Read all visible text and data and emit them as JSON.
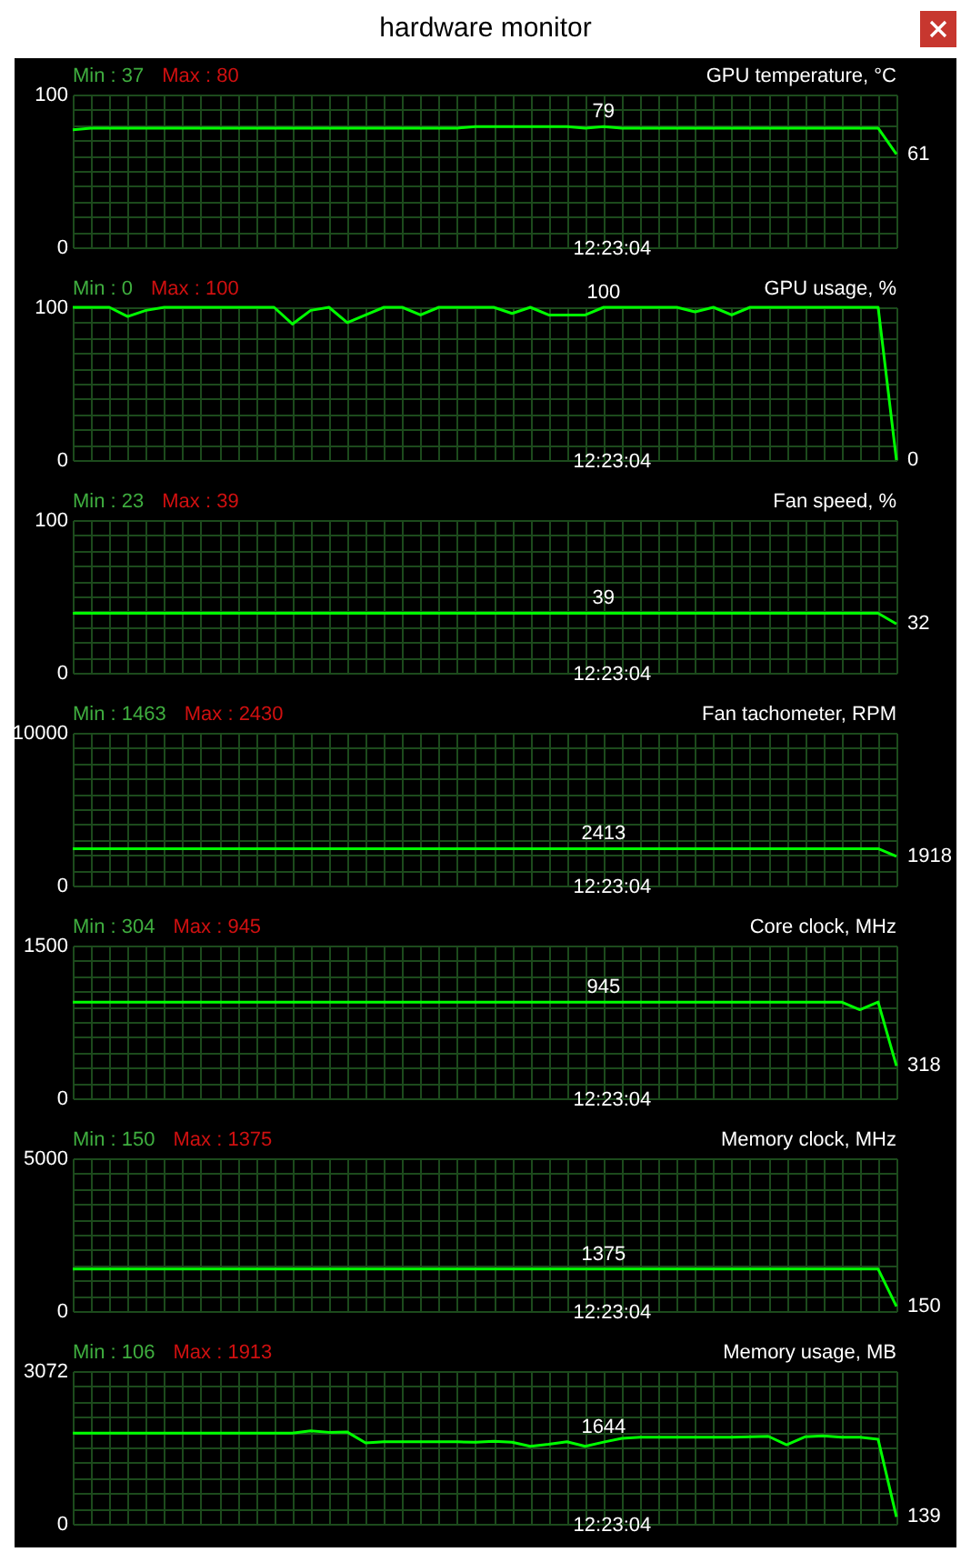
{
  "chart_data": [
    {
      "type": "other",
      "title": "hardware monitor"
    },
    {
      "type": "line",
      "title": "GPU temperature, °C",
      "annotations": [
        "Min : 37",
        "Max : 80",
        "12:23:04"
      ],
      "grid": true,
      "color": "#00ff00",
      "categories": [
        null,
        null,
        null,
        null,
        null,
        null,
        null,
        null,
        null,
        null,
        null,
        null,
        null,
        null,
        null,
        null,
        null,
        null,
        null,
        null,
        null,
        null,
        null,
        null,
        null,
        null,
        null,
        null,
        null,
        null,
        null,
        null,
        null,
        null,
        null,
        null,
        null,
        null,
        null,
        null,
        null,
        null,
        null,
        null,
        null,
        null
      ],
      "values": [
        77,
        78,
        78,
        78,
        78,
        78,
        78,
        78,
        78,
        78,
        78,
        78,
        78,
        78,
        78,
        78,
        78,
        78,
        78,
        78,
        78,
        78,
        79,
        79,
        79,
        79,
        79,
        79,
        78,
        79,
        78,
        78,
        78,
        78,
        78,
        78,
        78,
        78,
        78,
        78,
        78,
        78,
        78,
        78,
        78,
        61
      ],
      "value_labels": [
        null,
        null,
        null,
        null,
        null,
        null,
        null,
        null,
        null,
        null,
        null,
        null,
        null,
        null,
        null,
        null,
        null,
        null,
        null,
        null,
        null,
        null,
        null,
        null,
        null,
        null,
        null,
        null,
        null,
        "79",
        null,
        null,
        null,
        null,
        null,
        null,
        null,
        null,
        null,
        null,
        null,
        null,
        null,
        null,
        null,
        "61"
      ],
      "ylim": [
        0,
        100
      ],
      "yticks": [
        0,
        {
          "value": 10,
          "label": null
        },
        {
          "value": 20,
          "label": null
        },
        {
          "value": 30,
          "label": null
        },
        {
          "value": 40,
          "label": null
        },
        {
          "value": 50,
          "label": null
        },
        {
          "value": 60,
          "label": null
        },
        {
          "value": 70,
          "label": null
        },
        {
          "value": 80,
          "label": null
        },
        {
          "value": 90,
          "label": null
        },
        100
      ]
    },
    {
      "type": "line",
      "title": "GPU usage, %",
      "annotations": [
        "Min : 0",
        "Max : 100",
        "12:23:04"
      ],
      "grid": true,
      "color": "#00ff00",
      "categories": [
        null,
        null,
        null,
        null,
        null,
        null,
        null,
        null,
        null,
        null,
        null,
        null,
        null,
        null,
        null,
        null,
        null,
        null,
        null,
        null,
        null,
        null,
        null,
        null,
        null,
        null,
        null,
        null,
        null,
        null,
        null,
        null,
        null,
        null,
        null,
        null,
        null,
        null,
        null,
        null,
        null,
        null,
        null,
        null,
        null,
        null
      ],
      "values": [
        100,
        100,
        100,
        94,
        98,
        100,
        100,
        100,
        100,
        100,
        100,
        100,
        89,
        98,
        100,
        90,
        95,
        100,
        100,
        95,
        100,
        100,
        100,
        100,
        96,
        100,
        95,
        95,
        95,
        100,
        100,
        100,
        100,
        100,
        97,
        100,
        95,
        100,
        100,
        100,
        100,
        100,
        100,
        100,
        100,
        0
      ],
      "value_labels": [
        null,
        null,
        null,
        null,
        null,
        null,
        null,
        null,
        null,
        null,
        null,
        null,
        null,
        null,
        null,
        null,
        null,
        null,
        null,
        null,
        null,
        null,
        null,
        null,
        null,
        null,
        null,
        null,
        null,
        "100",
        null,
        null,
        null,
        null,
        null,
        null,
        null,
        null,
        null,
        null,
        null,
        null,
        null,
        null,
        null,
        "0"
      ],
      "ylim": [
        0,
        100
      ],
      "yticks": [
        0,
        {
          "value": 10,
          "label": null
        },
        {
          "value": 20,
          "label": null
        },
        {
          "value": 30,
          "label": null
        },
        {
          "value": 40,
          "label": null
        },
        {
          "value": 50,
          "label": null
        },
        {
          "value": 60,
          "label": null
        },
        {
          "value": 70,
          "label": null
        },
        {
          "value": 80,
          "label": null
        },
        {
          "value": 90,
          "label": null
        },
        100
      ]
    },
    {
      "type": "line",
      "title": "Fan speed, %",
      "annotations": [
        "Min : 23",
        "Max : 39",
        "12:23:04"
      ],
      "grid": true,
      "color": "#00ff00",
      "categories": [
        null,
        null,
        null,
        null,
        null,
        null,
        null,
        null,
        null,
        null,
        null,
        null,
        null,
        null,
        null,
        null,
        null,
        null,
        null,
        null,
        null,
        null,
        null,
        null,
        null,
        null,
        null,
        null,
        null,
        null,
        null,
        null,
        null,
        null,
        null,
        null,
        null,
        null,
        null,
        null,
        null,
        null,
        null,
        null,
        null,
        null
      ],
      "values": [
        39,
        39,
        39,
        39,
        39,
        39,
        39,
        39,
        39,
        39,
        39,
        39,
        39,
        39,
        39,
        39,
        39,
        39,
        39,
        39,
        39,
        39,
        39,
        39,
        39,
        39,
        39,
        39,
        39,
        39,
        39,
        39,
        39,
        39,
        39,
        39,
        39,
        39,
        39,
        39,
        39,
        39,
        39,
        39,
        39,
        32
      ],
      "value_labels": [
        null,
        null,
        null,
        null,
        null,
        null,
        null,
        null,
        null,
        null,
        null,
        null,
        null,
        null,
        null,
        null,
        null,
        null,
        null,
        null,
        null,
        null,
        null,
        null,
        null,
        null,
        null,
        null,
        null,
        "39",
        null,
        null,
        null,
        null,
        null,
        null,
        null,
        null,
        null,
        null,
        null,
        null,
        null,
        null,
        null,
        "32"
      ],
      "ylim": [
        0,
        100
      ],
      "yticks": [
        0,
        {
          "value": 10,
          "label": null
        },
        {
          "value": 20,
          "label": null
        },
        {
          "value": 30,
          "label": null
        },
        {
          "value": 40,
          "label": null
        },
        {
          "value": 50,
          "label": null
        },
        {
          "value": 60,
          "label": null
        },
        {
          "value": 70,
          "label": null
        },
        {
          "value": 80,
          "label": null
        },
        {
          "value": 90,
          "label": null
        },
        100
      ]
    },
    {
      "type": "line",
      "title": "Fan tachometer, RPM",
      "annotations": [
        "Min : 1463",
        "Max : 2430",
        "12:23:04"
      ],
      "grid": true,
      "color": "#00ff00",
      "categories": [
        null,
        null,
        null,
        null,
        null,
        null,
        null,
        null,
        null,
        null,
        null,
        null,
        null,
        null,
        null,
        null,
        null,
        null,
        null,
        null,
        null,
        null,
        null,
        null,
        null,
        null,
        null,
        null,
        null,
        null,
        null,
        null,
        null,
        null,
        null,
        null,
        null,
        null,
        null,
        null,
        null,
        null,
        null,
        null,
        null,
        null
      ],
      "values": [
        2413,
        2413,
        2413,
        2413,
        2413,
        2413,
        2413,
        2413,
        2413,
        2413,
        2413,
        2413,
        2413,
        2413,
        2413,
        2413,
        2413,
        2413,
        2413,
        2413,
        2413,
        2413,
        2413,
        2413,
        2413,
        2413,
        2413,
        2413,
        2413,
        2413,
        2413,
        2413,
        2413,
        2413,
        2413,
        2413,
        2413,
        2413,
        2413,
        2413,
        2413,
        2413,
        2413,
        2413,
        2413,
        1918
      ],
      "value_labels": [
        null,
        null,
        null,
        null,
        null,
        null,
        null,
        null,
        null,
        null,
        null,
        null,
        null,
        null,
        null,
        null,
        null,
        null,
        null,
        null,
        null,
        null,
        null,
        null,
        null,
        null,
        null,
        null,
        null,
        "2413",
        null,
        null,
        null,
        null,
        null,
        null,
        null,
        null,
        null,
        null,
        null,
        null,
        null,
        null,
        null,
        "1918"
      ],
      "ylim": [
        0,
        10000
      ],
      "yticks": [
        0,
        {
          "value": 1000,
          "label": null
        },
        {
          "value": 2000,
          "label": null
        },
        {
          "value": 3000,
          "label": null
        },
        {
          "value": 4000,
          "label": null
        },
        {
          "value": 5000,
          "label": null
        },
        {
          "value": 6000,
          "label": null
        },
        {
          "value": 7000,
          "label": null
        },
        {
          "value": 8000,
          "label": null
        },
        {
          "value": 9000,
          "label": null
        },
        10000
      ]
    },
    {
      "type": "line",
      "title": "Core clock, MHz",
      "annotations": [
        "Min : 304",
        "Max : 945",
        "12:23:04"
      ],
      "grid": true,
      "color": "#00ff00",
      "categories": [
        null,
        null,
        null,
        null,
        null,
        null,
        null,
        null,
        null,
        null,
        null,
        null,
        null,
        null,
        null,
        null,
        null,
        null,
        null,
        null,
        null,
        null,
        null,
        null,
        null,
        null,
        null,
        null,
        null,
        null,
        null,
        null,
        null,
        null,
        null,
        null,
        null,
        null,
        null,
        null,
        null,
        null,
        null,
        null,
        null,
        null
      ],
      "values": [
        945,
        945,
        945,
        945,
        945,
        945,
        945,
        945,
        945,
        945,
        945,
        945,
        945,
        945,
        945,
        945,
        945,
        945,
        945,
        945,
        945,
        945,
        945,
        945,
        945,
        945,
        945,
        945,
        945,
        945,
        945,
        945,
        945,
        945,
        945,
        945,
        945,
        945,
        945,
        945,
        945,
        945,
        945,
        870,
        945,
        318
      ],
      "value_labels": [
        null,
        null,
        null,
        null,
        null,
        null,
        null,
        null,
        null,
        null,
        null,
        null,
        null,
        null,
        null,
        null,
        null,
        null,
        null,
        null,
        null,
        null,
        null,
        null,
        null,
        null,
        null,
        null,
        null,
        "945",
        null,
        null,
        null,
        null,
        null,
        null,
        null,
        null,
        null,
        null,
        null,
        null,
        null,
        null,
        null,
        "318"
      ],
      "ylim": [
        0,
        1500
      ],
      "yticks": [
        0,
        {
          "value": 150,
          "label": null
        },
        {
          "value": 300,
          "label": null
        },
        {
          "value": 450,
          "label": null
        },
        {
          "value": 600,
          "label": null
        },
        {
          "value": 750,
          "label": null
        },
        {
          "value": 900,
          "label": null
        },
        {
          "value": 1050,
          "label": null
        },
        {
          "value": 1200,
          "label": null
        },
        {
          "value": 1350,
          "label": null
        },
        1500
      ]
    },
    {
      "type": "line",
      "title": "Memory clock, MHz",
      "annotations": [
        "Min : 150",
        "Max : 1375",
        "12:23:04"
      ],
      "grid": true,
      "color": "#00ff00",
      "categories": [
        null,
        null,
        null,
        null,
        null,
        null,
        null,
        null,
        null,
        null,
        null,
        null,
        null,
        null,
        null,
        null,
        null,
        null,
        null,
        null,
        null,
        null,
        null,
        null,
        null,
        null,
        null,
        null,
        null,
        null,
        null,
        null,
        null,
        null,
        null,
        null,
        null,
        null,
        null,
        null,
        null,
        null,
        null,
        null,
        null,
        null
      ],
      "values": [
        1375,
        1375,
        1375,
        1375,
        1375,
        1375,
        1375,
        1375,
        1375,
        1375,
        1375,
        1375,
        1375,
        1375,
        1375,
        1375,
        1375,
        1375,
        1375,
        1375,
        1375,
        1375,
        1375,
        1375,
        1375,
        1375,
        1375,
        1375,
        1375,
        1375,
        1375,
        1375,
        1375,
        1375,
        1375,
        1375,
        1375,
        1375,
        1375,
        1375,
        1375,
        1375,
        1375,
        1375,
        1375,
        150
      ],
      "value_labels": [
        null,
        null,
        null,
        null,
        null,
        null,
        null,
        null,
        null,
        null,
        null,
        null,
        null,
        null,
        null,
        null,
        null,
        null,
        null,
        null,
        null,
        null,
        null,
        null,
        null,
        null,
        null,
        null,
        null,
        "1375",
        null,
        null,
        null,
        null,
        null,
        null,
        null,
        null,
        null,
        null,
        null,
        null,
        null,
        null,
        null,
        "150"
      ],
      "ylim": [
        0,
        5000
      ],
      "yticks": [
        0,
        {
          "value": 500,
          "label": null
        },
        {
          "value": 1000,
          "label": null
        },
        {
          "value": 1500,
          "label": null
        },
        {
          "value": 2000,
          "label": null
        },
        {
          "value": 2500,
          "label": null
        },
        {
          "value": 3000,
          "label": null
        },
        {
          "value": 3500,
          "label": null
        },
        {
          "value": 4000,
          "label": null
        },
        {
          "value": 4500,
          "label": null
        },
        5000
      ]
    },
    {
      "type": "line",
      "title": "Memory usage, MB",
      "annotations": [
        "Min : 106",
        "Max : 1913",
        "12:23:04"
      ],
      "grid": true,
      "color": "#00ff00",
      "categories": [
        null,
        null,
        null,
        null,
        null,
        null,
        null,
        null,
        null,
        null,
        null,
        null,
        null,
        null,
        null,
        null,
        null,
        null,
        null,
        null,
        null,
        null,
        null,
        null,
        null,
        null,
        null,
        null,
        null,
        null,
        null,
        null,
        null,
        null,
        null,
        null,
        null,
        null,
        null,
        null,
        null,
        null,
        null,
        null,
        null,
        null
      ],
      "values": [
        1824,
        1824,
        1824,
        1824,
        1824,
        1824,
        1824,
        1824,
        1824,
        1824,
        1824,
        1824,
        1824,
        1870,
        1840,
        1845,
        1628,
        1650,
        1650,
        1650,
        1650,
        1650,
        1640,
        1660,
        1640,
        1560,
        1600,
        1650,
        1560,
        1644,
        1720,
        1740,
        1740,
        1740,
        1740,
        1740,
        1740,
        1750,
        1760,
        1590,
        1750,
        1770,
        1740,
        1740,
        1700,
        139
      ],
      "value_labels": [
        null,
        null,
        null,
        null,
        null,
        null,
        null,
        null,
        null,
        null,
        null,
        null,
        null,
        null,
        null,
        null,
        null,
        null,
        null,
        null,
        null,
        null,
        null,
        null,
        null,
        null,
        null,
        null,
        null,
        "1644",
        null,
        null,
        null,
        null,
        null,
        null,
        null,
        null,
        null,
        null,
        null,
        null,
        null,
        null,
        null,
        "139"
      ],
      "ylim": [
        0,
        3072
      ],
      "yticks": [
        0,
        {
          "value": 307.2,
          "label": null
        },
        {
          "value": 614.4,
          "label": null
        },
        {
          "value": 921.6,
          "label": null
        },
        {
          "value": 1228.8,
          "label": null
        },
        {
          "value": 1536,
          "label": null
        },
        {
          "value": 1843.2,
          "label": null
        },
        {
          "value": 2150.4,
          "label": null
        },
        {
          "value": 2457.6,
          "label": null
        },
        {
          "value": 2764.8,
          "label": null
        },
        3072
      ]
    }
  ]
}
